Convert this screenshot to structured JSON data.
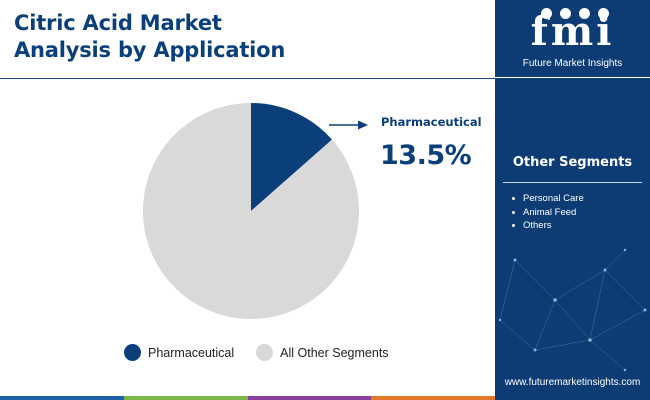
{
  "header": {
    "title_line1": "Citric Acid Market",
    "title_line2": "Analysis by Application"
  },
  "chart_data": {
    "type": "pie",
    "categories": [
      "Pharmaceutical",
      "All Other Segments"
    ],
    "values": [
      13.5,
      86.5
    ],
    "colors": [
      "#0b3f7a",
      "#d9d9d9"
    ],
    "legend_position": "bottom",
    "highlight": {
      "label": "Pharmaceutical",
      "value_text": "13.5%"
    }
  },
  "legend": {
    "items": [
      {
        "label": "Pharmaceutical",
        "color": "#0b3f7a"
      },
      {
        "label": "All Other Segments",
        "color": "#d9d9d9"
      }
    ]
  },
  "brand": {
    "logo_text": "fmi",
    "name": "Future Market Insights",
    "website": "www.futuremarketinsights.com",
    "panel_color": "#0d3c74"
  },
  "other_segments": {
    "title": "Other Segments",
    "items": [
      "Personal Care",
      "Animal Feed",
      "Others"
    ]
  },
  "bottom_bar_colors": [
    "#1f5fa8",
    "#7ab648",
    "#8a3f9a",
    "#e07a2a"
  ]
}
